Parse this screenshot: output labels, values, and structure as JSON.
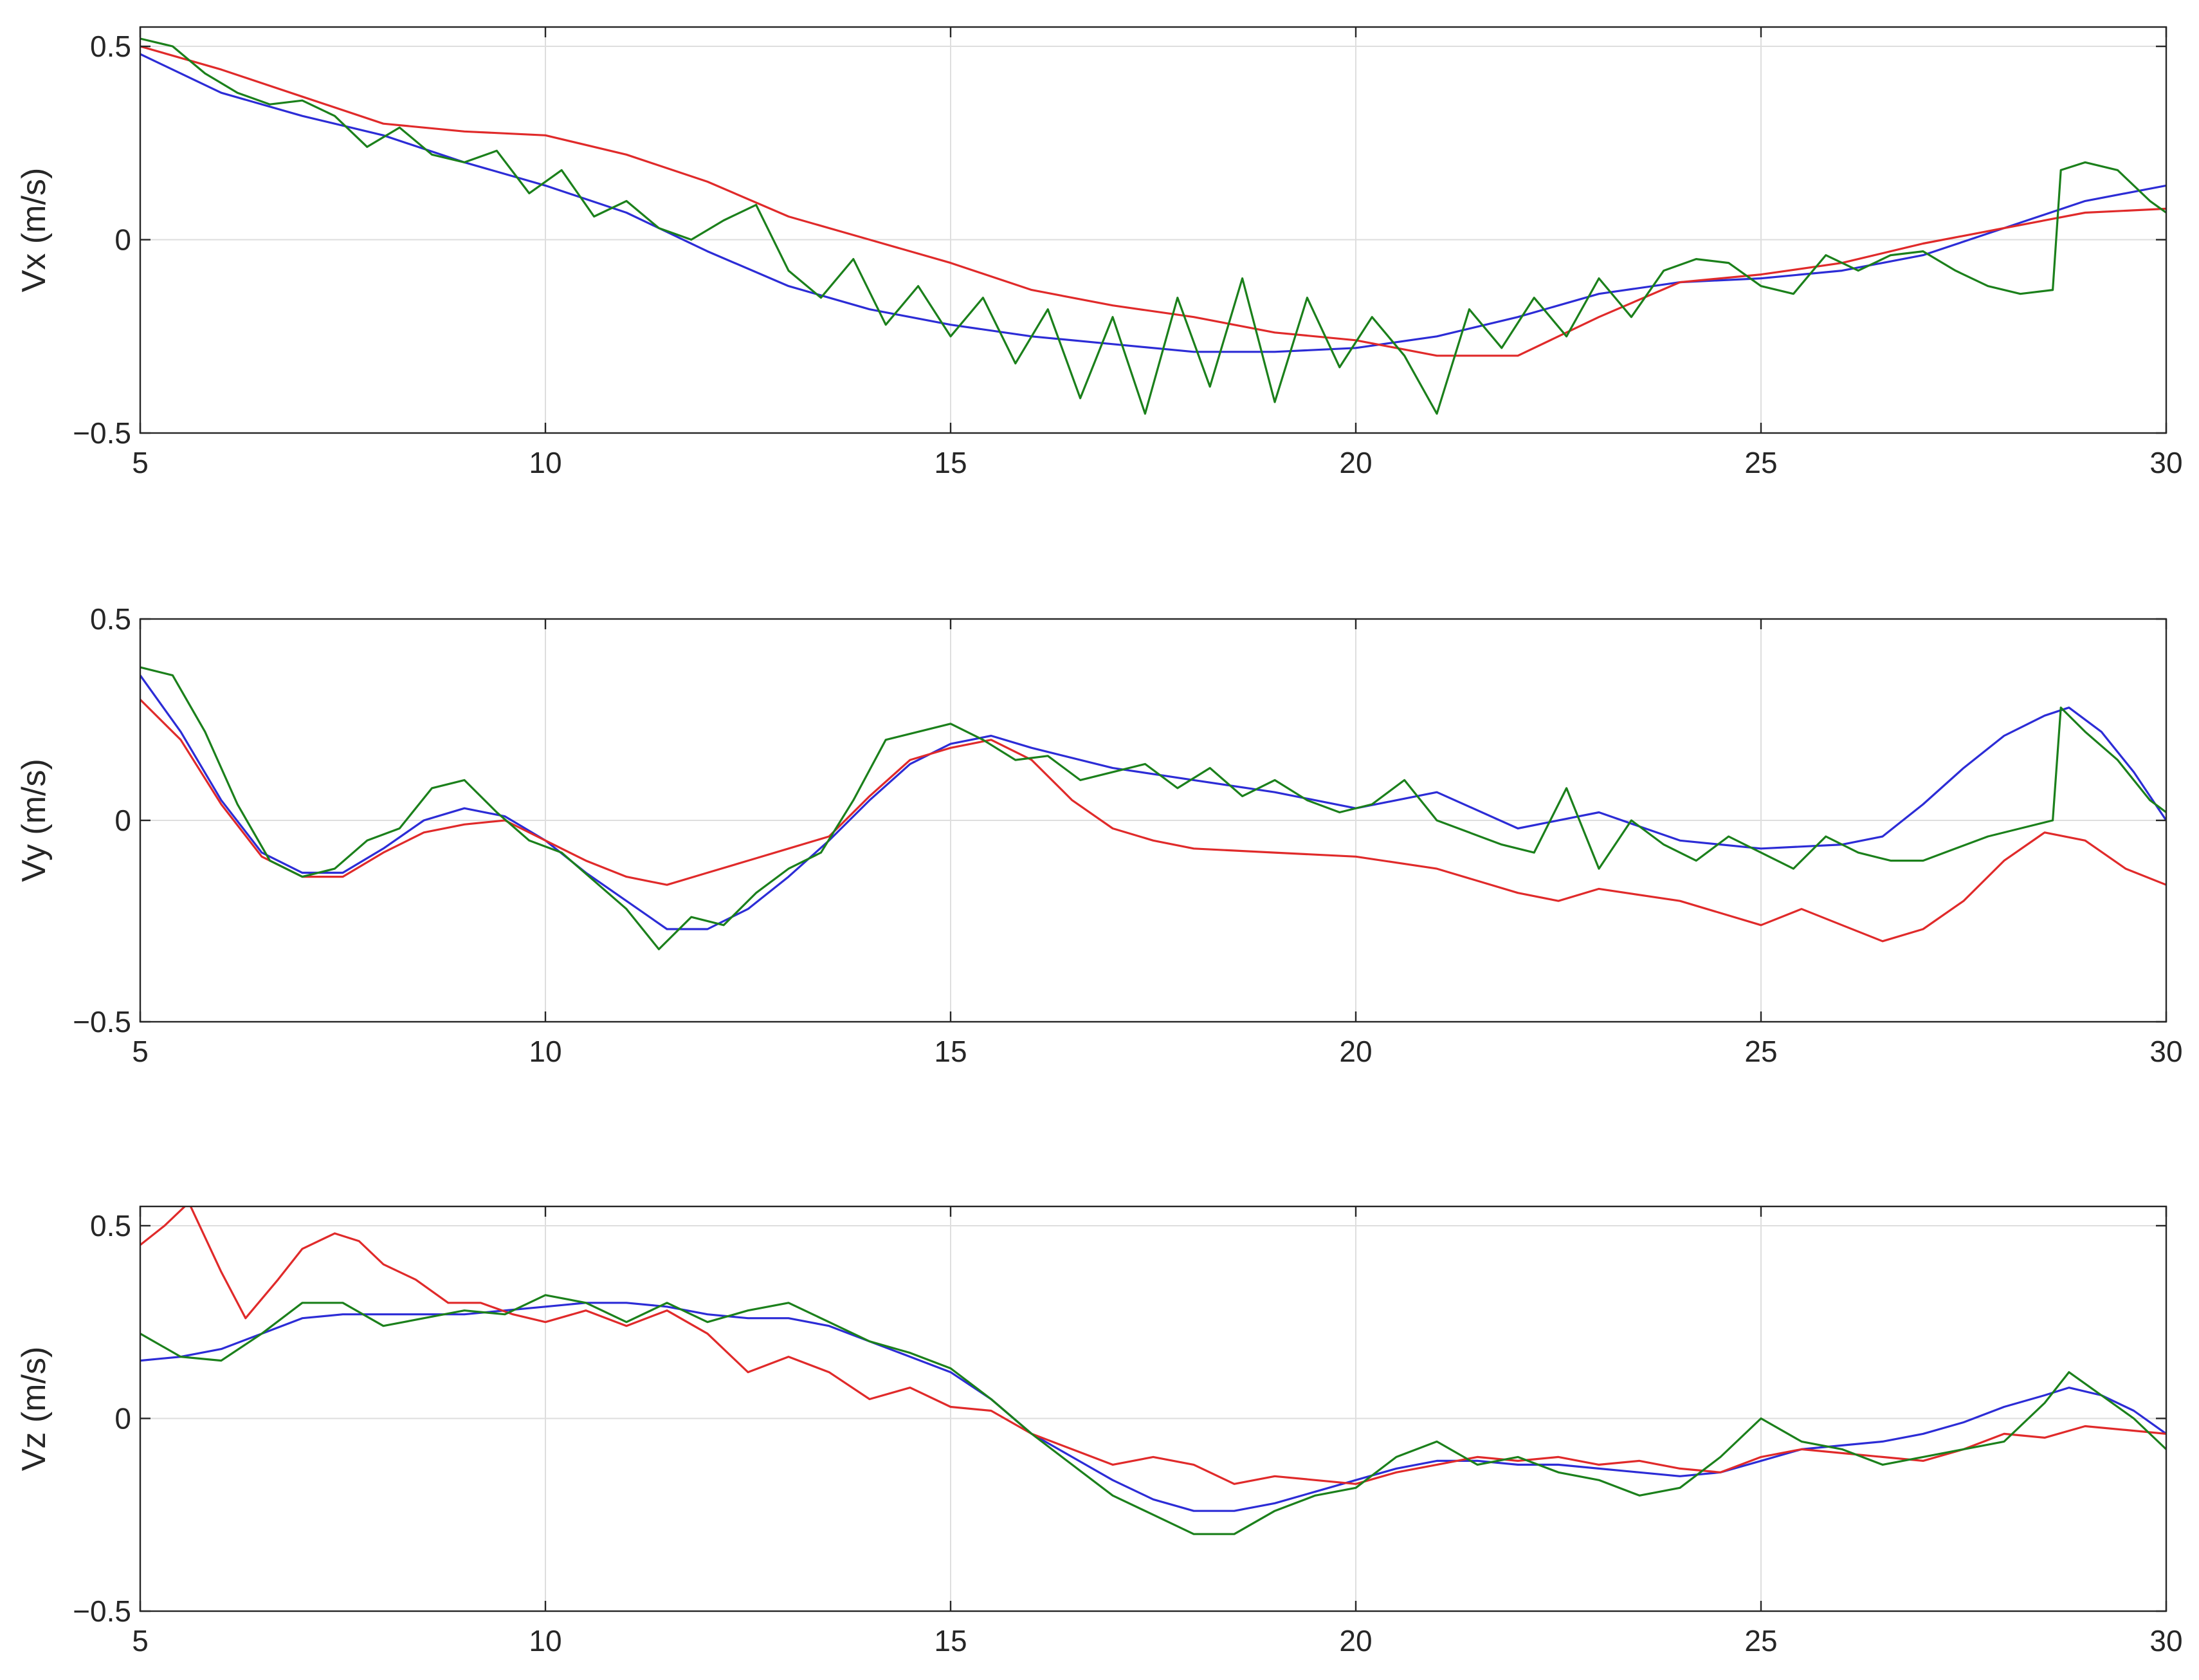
{
  "chart_data": [
    {
      "type": "line",
      "ylabel": "Vx (m/s)",
      "xlim": [
        5,
        30
      ],
      "ylim": [
        -0.5,
        0.55
      ],
      "xticks": [
        "5",
        "10",
        "15",
        "20",
        "25",
        "30"
      ],
      "yticks": [
        "-0.5",
        "0",
        "0.5"
      ],
      "grid": true,
      "series": [
        {
          "color": "#2c2cd6",
          "x": [
            5,
            6,
            7,
            8,
            9,
            10,
            11,
            12,
            13,
            14,
            15,
            16,
            17,
            18,
            19,
            20,
            21,
            22,
            23,
            24,
            25,
            26,
            27,
            28,
            29,
            30
          ],
          "values": [
            0.48,
            0.38,
            0.32,
            0.27,
            0.2,
            0.14,
            0.07,
            -0.03,
            -0.12,
            -0.18,
            -0.22,
            -0.25,
            -0.27,
            -0.29,
            -0.29,
            -0.28,
            -0.25,
            -0.2,
            -0.14,
            -0.11,
            -0.1,
            -0.08,
            -0.04,
            0.03,
            0.1,
            0.14
          ]
        },
        {
          "color": "#e02a2a",
          "x": [
            5,
            6,
            7,
            8,
            9,
            10,
            11,
            12,
            13,
            14,
            15,
            16,
            17,
            18,
            19,
            20,
            21,
            22,
            23,
            24,
            25,
            26,
            27,
            28,
            29,
            30
          ],
          "values": [
            0.5,
            0.44,
            0.37,
            0.3,
            0.28,
            0.27,
            0.22,
            0.15,
            0.06,
            0.0,
            -0.06,
            -0.13,
            -0.17,
            -0.2,
            -0.24,
            -0.26,
            -0.3,
            -0.3,
            -0.2,
            -0.11,
            -0.09,
            -0.06,
            -0.01,
            0.03,
            0.07,
            0.08
          ]
        },
        {
          "color": "#1b801b",
          "x": [
            5,
            5.4,
            5.8,
            6.2,
            6.6,
            7,
            7.4,
            7.8,
            8.2,
            8.6,
            9,
            9.4,
            9.8,
            10.2,
            10.6,
            11,
            11.4,
            11.8,
            12.2,
            12.6,
            13,
            13.4,
            13.8,
            14.2,
            14.6,
            15,
            15.4,
            15.8,
            16.2,
            16.6,
            17,
            17.4,
            17.8,
            18.2,
            18.6,
            19,
            19.4,
            19.8,
            20.2,
            20.6,
            21,
            21.4,
            21.8,
            22.2,
            22.6,
            23,
            23.4,
            23.8,
            24.2,
            24.6,
            25,
            25.4,
            25.8,
            26.2,
            26.6,
            27,
            27.4,
            27.8,
            28.2,
            28.6,
            28.7,
            29,
            29.4,
            29.8,
            30
          ],
          "values": [
            0.52,
            0.5,
            0.43,
            0.38,
            0.35,
            0.36,
            0.32,
            0.24,
            0.29,
            0.22,
            0.2,
            0.23,
            0.12,
            0.18,
            0.06,
            0.1,
            0.03,
            0.0,
            0.05,
            0.09,
            -0.08,
            -0.15,
            -0.05,
            -0.22,
            -0.12,
            -0.25,
            -0.15,
            -0.32,
            -0.18,
            -0.41,
            -0.2,
            -0.45,
            -0.15,
            -0.38,
            -0.1,
            -0.42,
            -0.15,
            -0.33,
            -0.2,
            -0.3,
            -0.45,
            -0.18,
            -0.28,
            -0.15,
            -0.25,
            -0.1,
            -0.2,
            -0.08,
            -0.05,
            -0.06,
            -0.12,
            -0.14,
            -0.04,
            -0.08,
            -0.04,
            -0.03,
            -0.08,
            -0.12,
            -0.14,
            -0.13,
            0.18,
            0.2,
            0.18,
            0.1,
            0.07
          ]
        }
      ]
    },
    {
      "type": "line",
      "ylabel": "Vy (m/s)",
      "xlim": [
        5,
        30
      ],
      "ylim": [
        -0.5,
        0.5
      ],
      "xticks": [
        "5",
        "10",
        "15",
        "20",
        "25",
        "30"
      ],
      "yticks": [
        "-0.5",
        "0",
        "0.5"
      ],
      "grid": true,
      "series": [
        {
          "color": "#2c2cd6",
          "x": [
            5,
            5.5,
            6,
            6.5,
            7,
            7.5,
            8,
            8.5,
            9,
            9.5,
            10,
            10.5,
            11,
            11.5,
            12,
            12.5,
            13,
            13.5,
            14,
            14.5,
            15,
            15.5,
            16,
            17,
            18,
            19,
            20,
            21,
            22,
            23,
            24,
            25,
            26,
            26.5,
            27,
            27.5,
            28,
            28.5,
            28.8,
            29.2,
            29.6,
            30
          ],
          "values": [
            0.36,
            0.22,
            0.05,
            -0.08,
            -0.13,
            -0.13,
            -0.07,
            0.0,
            0.03,
            0.01,
            -0.05,
            -0.13,
            -0.2,
            -0.27,
            -0.27,
            -0.22,
            -0.14,
            -0.05,
            0.05,
            0.14,
            0.19,
            0.21,
            0.18,
            0.13,
            0.1,
            0.07,
            0.03,
            0.07,
            -0.02,
            0.02,
            -0.05,
            -0.07,
            -0.06,
            -0.04,
            0.04,
            0.13,
            0.21,
            0.26,
            0.28,
            0.22,
            0.12,
            0.0
          ]
        },
        {
          "color": "#e02a2a",
          "x": [
            5,
            5.5,
            6,
            6.5,
            7,
            7.5,
            8,
            8.5,
            9,
            9.5,
            10,
            10.5,
            11,
            11.5,
            12,
            12.5,
            13,
            13.5,
            14,
            14.5,
            15,
            15.5,
            16,
            16.5,
            17,
            17.5,
            18,
            19,
            20,
            21,
            22,
            22.5,
            23,
            24,
            24.5,
            25,
            25.5,
            26,
            26.5,
            27,
            27.5,
            28,
            28.5,
            29,
            29.5,
            30
          ],
          "values": [
            0.3,
            0.2,
            0.04,
            -0.09,
            -0.14,
            -0.14,
            -0.08,
            -0.03,
            -0.01,
            0.0,
            -0.05,
            -0.1,
            -0.14,
            -0.16,
            -0.13,
            -0.1,
            -0.07,
            -0.04,
            0.06,
            0.15,
            0.18,
            0.2,
            0.15,
            0.05,
            -0.02,
            -0.05,
            -0.07,
            -0.08,
            -0.09,
            -0.12,
            -0.18,
            -0.2,
            -0.17,
            -0.2,
            -0.23,
            -0.26,
            -0.22,
            -0.26,
            -0.3,
            -0.27,
            -0.2,
            -0.1,
            -0.03,
            -0.05,
            -0.12,
            -0.16
          ]
        },
        {
          "color": "#1b801b",
          "x": [
            5,
            5.4,
            5.8,
            6.2,
            6.6,
            7,
            7.4,
            7.8,
            8.2,
            8.6,
            9,
            9.4,
            9.8,
            10.2,
            10.6,
            11,
            11.4,
            11.8,
            12.2,
            12.6,
            13,
            13.4,
            13.8,
            14.2,
            14.6,
            15,
            15.4,
            15.8,
            16.2,
            16.6,
            17,
            17.4,
            17.8,
            18.2,
            18.6,
            19,
            19.4,
            19.8,
            20.2,
            20.6,
            21,
            21.4,
            21.8,
            22.2,
            22.6,
            23,
            23.4,
            23.8,
            24.2,
            24.6,
            25,
            25.4,
            25.8,
            26.2,
            26.6,
            27,
            27.4,
            27.8,
            28.2,
            28.6,
            28.7,
            29,
            29.4,
            29.8,
            30
          ],
          "values": [
            0.38,
            0.36,
            0.22,
            0.04,
            -0.1,
            -0.14,
            -0.12,
            -0.05,
            -0.02,
            0.08,
            0.1,
            0.02,
            -0.05,
            -0.08,
            -0.15,
            -0.22,
            -0.32,
            -0.24,
            -0.26,
            -0.18,
            -0.12,
            -0.08,
            0.05,
            0.2,
            0.22,
            0.24,
            0.2,
            0.15,
            0.16,
            0.1,
            0.12,
            0.14,
            0.08,
            0.13,
            0.06,
            0.1,
            0.05,
            0.02,
            0.04,
            0.1,
            0.0,
            -0.03,
            -0.06,
            -0.08,
            0.08,
            -0.12,
            0.0,
            -0.06,
            -0.1,
            -0.04,
            -0.08,
            -0.12,
            -0.04,
            -0.08,
            -0.1,
            -0.1,
            -0.07,
            -0.04,
            -0.02,
            0.0,
            0.28,
            0.22,
            0.15,
            0.05,
            0.02
          ]
        }
      ]
    },
    {
      "type": "line",
      "ylabel": "Vz (m/s)",
      "xlim": [
        5,
        30
      ],
      "ylim": [
        -0.5,
        0.55
      ],
      "xticks": [
        "5",
        "10",
        "15",
        "20",
        "25",
        "30"
      ],
      "yticks": [
        "-0.5",
        "0",
        "0.5"
      ],
      "grid": true,
      "series": [
        {
          "color": "#2c2cd6",
          "x": [
            5,
            5.5,
            6,
            6.5,
            7,
            7.5,
            8,
            8.5,
            9,
            9.5,
            10,
            10.5,
            11,
            11.5,
            12,
            12.5,
            13,
            13.5,
            14,
            14.5,
            15,
            15.5,
            16,
            16.5,
            17,
            17.5,
            18,
            18.5,
            19,
            19.5,
            20,
            20.5,
            21,
            21.5,
            22,
            22.5,
            23,
            23.5,
            24,
            24.5,
            25,
            25.5,
            26,
            26.5,
            27,
            27.5,
            28,
            28.5,
            28.8,
            29.2,
            29.6,
            30
          ],
          "values": [
            0.15,
            0.16,
            0.18,
            0.22,
            0.26,
            0.27,
            0.27,
            0.27,
            0.27,
            0.28,
            0.29,
            0.3,
            0.3,
            0.29,
            0.27,
            0.26,
            0.26,
            0.24,
            0.2,
            0.16,
            0.12,
            0.05,
            -0.04,
            -0.1,
            -0.16,
            -0.21,
            -0.24,
            -0.24,
            -0.22,
            -0.19,
            -0.16,
            -0.13,
            -0.11,
            -0.11,
            -0.12,
            -0.12,
            -0.13,
            -0.14,
            -0.15,
            -0.14,
            -0.11,
            -0.08,
            -0.07,
            -0.06,
            -0.04,
            -0.01,
            0.03,
            0.06,
            0.08,
            0.06,
            0.02,
            -0.04
          ]
        },
        {
          "color": "#e02a2a",
          "x": [
            5,
            5.3,
            5.6,
            6,
            6.3,
            6.7,
            7,
            7.4,
            7.7,
            8,
            8.4,
            8.8,
            9.2,
            9.6,
            10,
            10.5,
            11,
            11.5,
            12,
            12.5,
            13,
            13.5,
            14,
            14.5,
            15,
            15.5,
            16,
            16.5,
            17,
            17.5,
            18,
            18.5,
            19,
            19.5,
            20,
            20.5,
            21,
            21.5,
            22,
            22.5,
            23,
            23.5,
            24,
            24.5,
            25,
            25.5,
            26,
            26.5,
            27,
            27.5,
            28,
            28.5,
            29,
            29.5,
            30
          ],
          "values": [
            0.45,
            0.5,
            0.56,
            0.38,
            0.26,
            0.36,
            0.44,
            0.48,
            0.46,
            0.4,
            0.36,
            0.3,
            0.3,
            0.27,
            0.25,
            0.28,
            0.24,
            0.28,
            0.22,
            0.12,
            0.16,
            0.12,
            0.05,
            0.08,
            0.03,
            0.02,
            -0.04,
            -0.08,
            -0.12,
            -0.1,
            -0.12,
            -0.17,
            -0.15,
            -0.16,
            -0.17,
            -0.14,
            -0.12,
            -0.1,
            -0.11,
            -0.1,
            -0.12,
            -0.11,
            -0.13,
            -0.14,
            -0.1,
            -0.08,
            -0.09,
            -0.1,
            -0.11,
            -0.08,
            -0.04,
            -0.05,
            -0.02,
            -0.03,
            -0.04
          ]
        },
        {
          "color": "#1b801b",
          "x": [
            5,
            5.5,
            6,
            6.5,
            7,
            7.5,
            8,
            8.5,
            9,
            9.5,
            10,
            10.5,
            11,
            11.5,
            12,
            12.5,
            13,
            13.5,
            14,
            14.5,
            15,
            15.5,
            16,
            16.5,
            17,
            17.5,
            18,
            18.5,
            19,
            19.5,
            20,
            20.5,
            21,
            21.5,
            22,
            22.5,
            23,
            23.5,
            24,
            24.5,
            25,
            25.5,
            26,
            26.5,
            27,
            27.5,
            28,
            28.5,
            28.8,
            29.2,
            29.6,
            30
          ],
          "values": [
            0.22,
            0.16,
            0.15,
            0.22,
            0.3,
            0.3,
            0.24,
            0.26,
            0.28,
            0.27,
            0.32,
            0.3,
            0.25,
            0.3,
            0.25,
            0.28,
            0.3,
            0.25,
            0.2,
            0.17,
            0.13,
            0.05,
            -0.04,
            -0.12,
            -0.2,
            -0.25,
            -0.3,
            -0.3,
            -0.24,
            -0.2,
            -0.18,
            -0.1,
            -0.06,
            -0.12,
            -0.1,
            -0.14,
            -0.16,
            -0.2,
            -0.18,
            -0.1,
            0.0,
            -0.06,
            -0.08,
            -0.12,
            -0.1,
            -0.08,
            -0.06,
            0.04,
            0.12,
            0.06,
            0.0,
            -0.08
          ]
        }
      ]
    }
  ]
}
